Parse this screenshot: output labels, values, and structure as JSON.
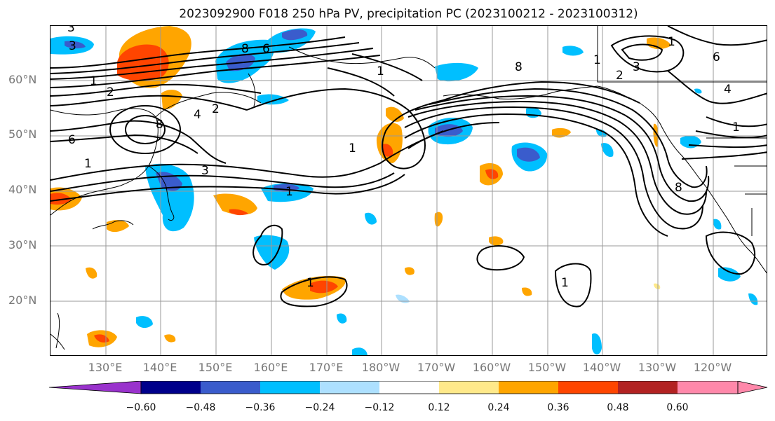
{
  "title": "2023092900 F018 250 hPa PV, precipitation PC (2023100212 - 2023100312)",
  "lat_labels": [
    "60°N",
    "50°N",
    "40°N",
    "30°N",
    "20°N"
  ],
  "lon_labels": [
    "130°E",
    "140°E",
    "150°E",
    "160°E",
    "170°E",
    "180°W",
    "170°W",
    "160°W",
    "150°W",
    "140°W",
    "130°W",
    "120°W"
  ],
  "contour_labels": [
    "3",
    "3",
    "1",
    "2",
    "6",
    "1",
    "4",
    "2",
    "8",
    "1",
    "3",
    "1",
    "8",
    "6",
    "1",
    "8",
    "1",
    "2",
    "4",
    "3",
    "1",
    "6",
    "1",
    "8",
    "1",
    "1"
  ],
  "colorbar": {
    "colors": [
      "#9932CC",
      "#00008B",
      "#3A5CCC",
      "#00BFFF",
      "#ADE0FF",
      "#FFFFFF",
      "#FFE98A",
      "#FFA500",
      "#FF4500",
      "#B22222",
      "#FF88AA"
    ],
    "tick_labels": [
      "−0.60",
      "−0.48",
      "−0.36",
      "−0.24",
      "−0.12",
      "0.12",
      "0.24",
      "0.36",
      "0.48",
      "0.60"
    ]
  },
  "colors": {
    "neg_strong": "#3A5CCC",
    "neg_mid": "#00BFFF",
    "neg_light": "#ADE0FF",
    "pos_light": "#FFE98A",
    "pos_mid": "#FFA500",
    "pos_strong": "#FF4500",
    "grid": "#999999",
    "contour": "#000000"
  }
}
